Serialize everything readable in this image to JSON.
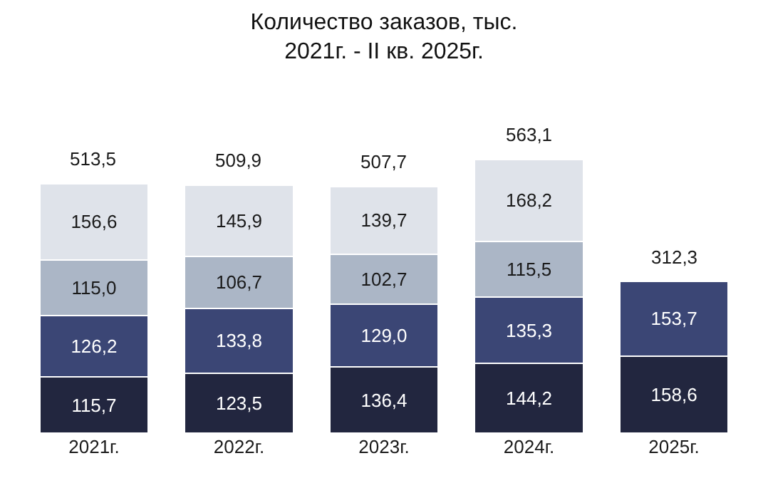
{
  "chart_data": {
    "type": "bar",
    "title": "Количество заказов, тыс.\n2021г. - II кв. 2025г.",
    "stacked": true,
    "tick_labels": "x",
    "categories": [
      "2021г.",
      "2022г.",
      "2023г.",
      "2024г.",
      "2025г."
    ],
    "series": [
      {
        "color": "#22263f",
        "values": [
          115.7,
          123.5,
          136.4,
          144.2,
          158.6
        ],
        "value_labels": [
          "115,7",
          "123,5",
          "136,4",
          "144,2",
          "158,6"
        ]
      },
      {
        "color": "#3b4675",
        "values": [
          126.2,
          133.8,
          129.0,
          135.3,
          153.7
        ],
        "value_labels": [
          "126,2",
          "133,8",
          "129,0",
          "135,3",
          "153,7"
        ]
      },
      {
        "color": "#abb6c6",
        "values": [
          115.0,
          106.7,
          102.7,
          115.5,
          null
        ],
        "value_labels": [
          "115,0",
          "106,7",
          "102,7",
          "115,5",
          null
        ]
      },
      {
        "color": "#dfe3ea",
        "values": [
          156.6,
          145.9,
          139.7,
          168.2,
          null
        ],
        "value_labels": [
          "156,6",
          "145,9",
          "139,7",
          "168,2",
          null
        ]
      }
    ],
    "totals": [
      "513,5",
      "509,9",
      "507,7",
      "563,1",
      "312,3"
    ]
  }
}
